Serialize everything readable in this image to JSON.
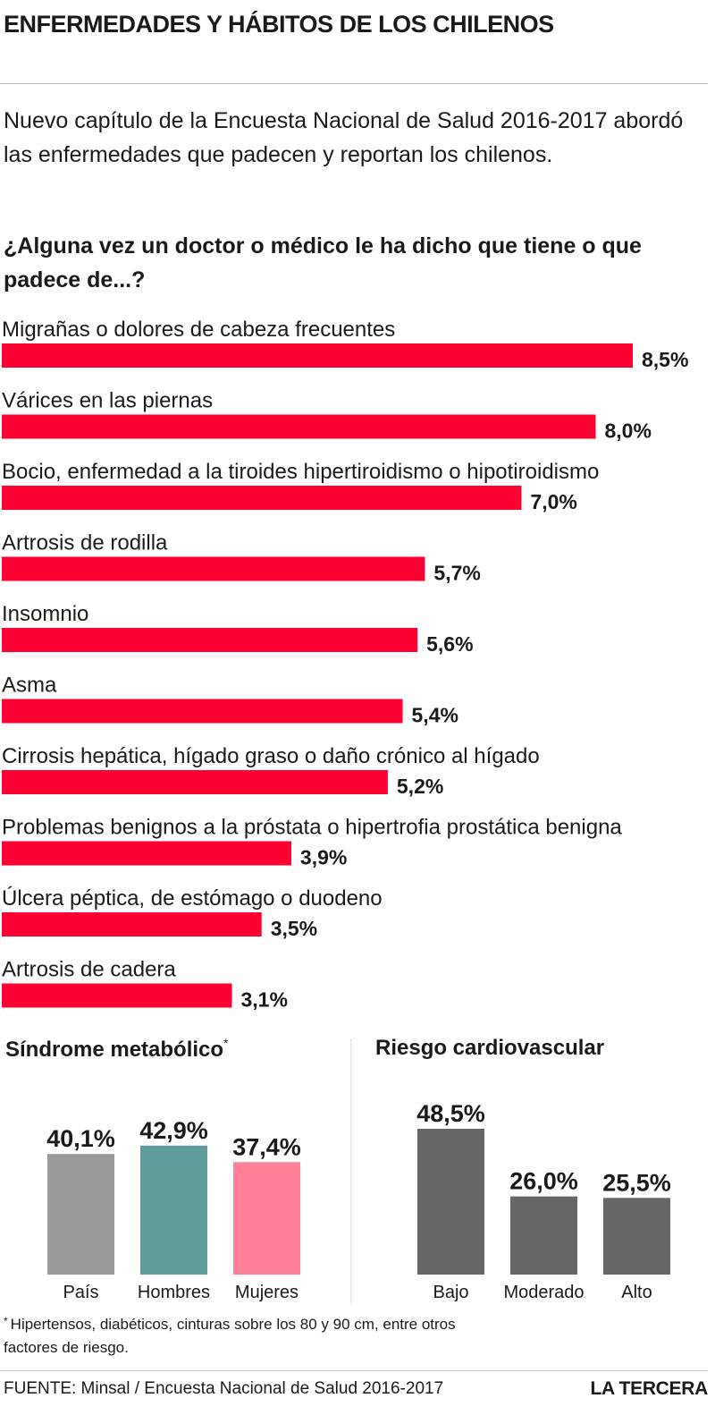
{
  "header": {
    "title": "ENFERMEDADES Y HÁBITOS DE LOS CHILENOS",
    "intro": "Nuevo capítulo de la Encuesta Nacional de Salud 2016-2017 abordó las enfermedades  que padecen y reportan los chilenos.",
    "question": "¿Alguna vez un doctor o médico le ha dicho que tiene o que padece de...?"
  },
  "colors": {
    "bar_red": "#ff0033",
    "pais_gray": "#999999",
    "hombres_teal": "#5f9b9a",
    "mujeres_pink": "#ff8097",
    "riesgo_gray": "#666666",
    "text": "#1a1a1a"
  },
  "chart_data": [
    {
      "type": "bar",
      "orientation": "horizontal",
      "categories": [
        "Migrañas o dolores de cabeza frecuentes",
        "Várices en las piernas",
        "Bocio, enfermedad a la tiroides hipertiroidismo o hipotiroidismo",
        "Artrosis de rodilla",
        "Insomnio",
        "Asma",
        "Cirrosis hepática, hígado graso o daño crónico al hígado",
        "Problemas benignos a la próstata o hipertrofia prostática benigna",
        "Úlcera péptica, de estómago o duodeno",
        "Artrosis de cadera"
      ],
      "values": [
        8.5,
        8.0,
        7.0,
        5.7,
        5.6,
        5.4,
        5.2,
        3.9,
        3.5,
        3.1
      ],
      "value_labels": [
        "8,5%",
        "8,0%",
        "7,0%",
        "5,7%",
        "5,6%",
        "5,4%",
        "5,2%",
        "3,9%",
        "3,5%",
        "3,1%"
      ],
      "xlim": [
        0,
        8.5
      ],
      "grid": false,
      "color": "#ff0033"
    },
    {
      "type": "bar",
      "title": "Síndrome metabólico",
      "title_mark": "*",
      "categories": [
        "País",
        "Hombres",
        "Mujeres"
      ],
      "values": [
        40.1,
        42.9,
        37.4
      ],
      "value_labels": [
        "40,1%",
        "42,9%",
        "37,4%"
      ],
      "colors": [
        "#999999",
        "#5f9b9a",
        "#ff8097"
      ],
      "ylim": [
        0,
        48.5
      ],
      "grid": false
    },
    {
      "type": "bar",
      "title": "Riesgo cardiovascular",
      "categories": [
        "Bajo",
        "Moderado",
        "Alto"
      ],
      "values": [
        48.5,
        26.0,
        25.5
      ],
      "value_labels": [
        "48,5%",
        "26,0%",
        "25,5%"
      ],
      "colors": [
        "#666666",
        "#666666",
        "#666666"
      ],
      "ylim": [
        0,
        48.5
      ],
      "grid": false
    }
  ],
  "footnote": {
    "mark": "*",
    "text": "Hipertensos, diabéticos, cinturas sobre los 80 y 90 cm, entre otros factores de riesgo."
  },
  "footer": {
    "source": "FUENTE: Minsal / Encuesta Nacional de Salud 2016-2017",
    "brand": "LA TERCERA"
  }
}
